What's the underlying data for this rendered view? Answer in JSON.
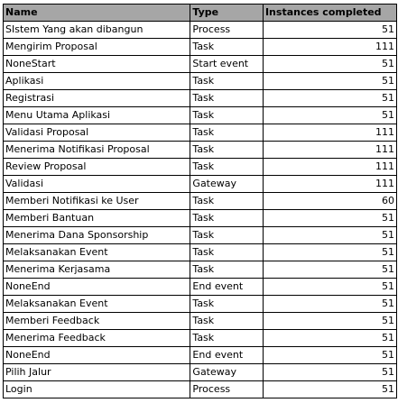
{
  "table": {
    "headers": [
      "Name",
      "Type",
      "Instances completed"
    ],
    "rows": [
      [
        "SIstem Yang akan dibangun",
        "Process",
        "51"
      ],
      [
        "Mengirim Proposal",
        "Task",
        "111"
      ],
      [
        "NoneStart",
        "Start event",
        "51"
      ],
      [
        "Aplikasi",
        "Task",
        "51"
      ],
      [
        "Registrasi",
        "Task",
        "51"
      ],
      [
        "Menu Utama Aplikasi",
        "Task",
        "51"
      ],
      [
        "Validasi Proposal",
        "Task",
        "111"
      ],
      [
        "Menerima Notifikasi Proposal",
        "Task",
        "111"
      ],
      [
        "Review Proposal",
        "Task",
        "111"
      ],
      [
        "Validasi",
        "Gateway",
        "111"
      ],
      [
        "Memberi Notifikasi ke User",
        "Task",
        "60"
      ],
      [
        "Memberi Bantuan",
        "Task",
        "51"
      ],
      [
        "Menerima Dana Sponsorship",
        "Task",
        "51"
      ],
      [
        "Melaksanakan Event",
        "Task",
        "51"
      ],
      [
        "Menerima Kerjasama",
        "Task",
        "51"
      ],
      [
        "NoneEnd",
        "End event",
        "51"
      ],
      [
        "Melaksanakan Event",
        "Task",
        "51"
      ],
      [
        "Memberi Feedback",
        "Task",
        "51"
      ],
      [
        "Menerima Feedback",
        "Task",
        "51"
      ],
      [
        "NoneEnd",
        "End event",
        "51"
      ],
      [
        "Pilih Jalur",
        "Gateway",
        "51"
      ],
      [
        "Login",
        "Process",
        "51"
      ]
    ]
  }
}
